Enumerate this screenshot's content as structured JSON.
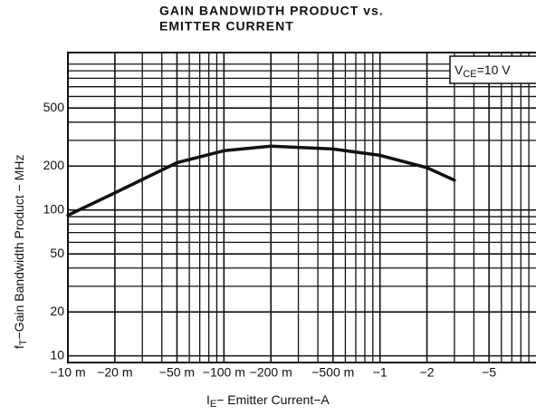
{
  "chart_data": {
    "type": "line",
    "title": [
      "GAIN BANDWIDTH PRODUCT vs.",
      "EMITTER CURRENT"
    ],
    "x_label": {
      "main": "I",
      "sub": "E",
      "rest": "− Emitter Current−A"
    },
    "y_label": {
      "main": "f",
      "sub": "T",
      "rest": "−Gain Bandwidth Product − MHz"
    },
    "annotation": {
      "main": "V",
      "sub": "CE",
      "rest": "=10 V"
    },
    "x_scale": "log",
    "y_scale": "log",
    "grid": true,
    "xlim": [
      -0.01,
      -10
    ],
    "ylim": [
      9,
      1200
    ],
    "xticks": [
      {
        "value": -0.01,
        "label": "−10 m"
      },
      {
        "value": -0.02,
        "label": "−20 m"
      },
      {
        "value": -0.05,
        "label": "−50 m"
      },
      {
        "value": -0.1,
        "label": "−100 m"
      },
      {
        "value": -0.2,
        "label": "−200 m"
      },
      {
        "value": -0.5,
        "label": "−500 m"
      },
      {
        "value": -1,
        "label": "−1"
      },
      {
        "value": -2,
        "label": "−2"
      },
      {
        "value": -5,
        "label": "−5"
      }
    ],
    "yticks": [
      10,
      20,
      50,
      100,
      200,
      500
    ],
    "minor_xticks": [
      -0.03,
      -0.04,
      -0.06,
      -0.07,
      -0.08,
      -0.09,
      -0.3,
      -0.4,
      -0.6,
      -0.7,
      -0.8,
      -0.9,
      -3,
      -4,
      -6,
      -7,
      -8,
      -9
    ],
    "minor_yticks": [
      30,
      40,
      60,
      70,
      80,
      90,
      300,
      400,
      600,
      700,
      800,
      900,
      1000
    ],
    "x": [
      -0.01,
      -0.02,
      -0.05,
      -0.1,
      -0.2,
      -0.5,
      -1,
      -2,
      -3
    ],
    "series": [
      {
        "color": "#111111",
        "values": [
          92,
          131,
          211,
          255,
          274,
          262,
          237,
          195,
          160
        ]
      }
    ]
  }
}
